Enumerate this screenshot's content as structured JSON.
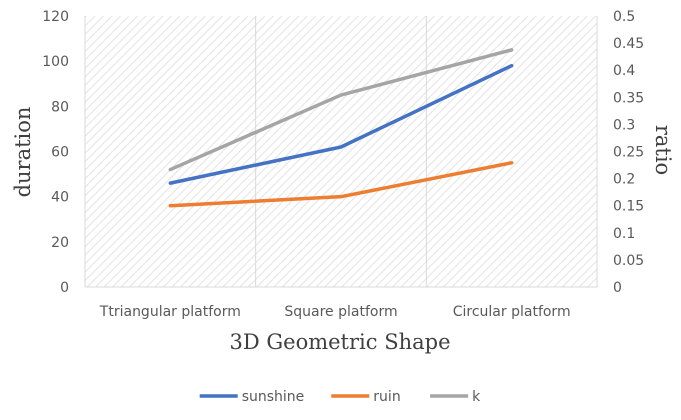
{
  "chart_data": {
    "type": "line",
    "categories": [
      "Ttriangular platform",
      "Square platform",
      "Circular platform"
    ],
    "series": [
      {
        "name": "sunshine",
        "axis": "left",
        "color": "#4472C4",
        "values": [
          46,
          62,
          98
        ]
      },
      {
        "name": "ruin",
        "axis": "left",
        "color": "#ED7D31",
        "values": [
          36,
          40,
          55
        ]
      },
      {
        "name": "k",
        "axis": "left",
        "color": "#A5A5A5",
        "values": [
          52,
          85,
          105
        ]
      }
    ],
    "xlabel": "3D Geometric Shape",
    "ylabel": "duration",
    "y2label": "ratio",
    "ylim": [
      0,
      120
    ],
    "y2lim": [
      0,
      0.5
    ],
    "yticks": [
      "0",
      "20",
      "40",
      "60",
      "80",
      "100",
      "120"
    ],
    "y2ticks": [
      "0",
      "0.05",
      "0.1",
      "0.15",
      "0.2",
      "0.25",
      "0.3",
      "0.35",
      "0.4",
      "0.45",
      "0.5"
    ],
    "grid": true,
    "grid_style": "diagonal hatch with vertical gridlines",
    "legend_position": "bottom"
  }
}
